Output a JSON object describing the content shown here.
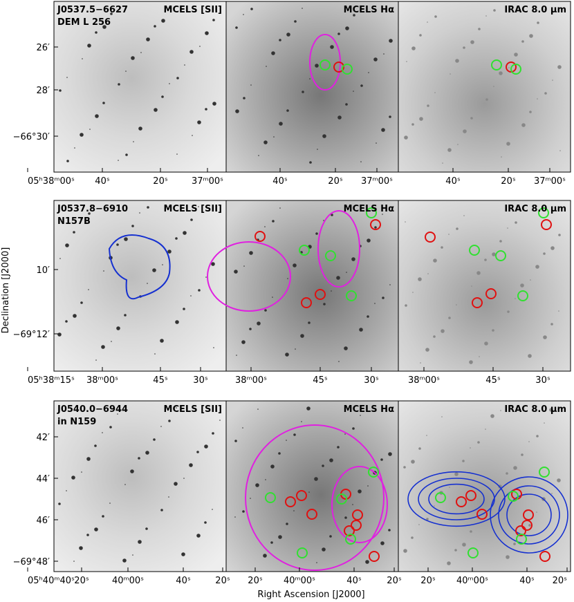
{
  "figure": {
    "x_axis_label": "Right Ascension [J2000]",
    "y_axis_label": "Declination [J2000]",
    "rows": [
      {
        "panels": [
          {
            "field": "J0537.5−6627",
            "object": "DEM L 256",
            "band": "MCELS [SII]",
            "x_ticks": [
              "05ʰ38ᵐ00ˢ",
              "40ˢ",
              "20ˢ",
              "37ᵐ00ˢ"
            ]
          },
          {
            "band": "MCELS Hα",
            "x_ticks": [
              "40ˢ",
              "20ˢ",
              "37ᵐ00ˢ"
            ]
          },
          {
            "band": "IRAC 8.0 μm",
            "x_ticks": [
              "40ˢ",
              "20ˢ",
              "37ᵐ00ˢ"
            ]
          }
        ],
        "y_ticks": [
          "26′",
          "28′",
          "−66°30′"
        ]
      },
      {
        "panels": [
          {
            "field": "J0537.8−6910",
            "object": "N157B",
            "band": "MCELS [SII]",
            "x_ticks": [
              "05ʰ38ᵐ15ˢ",
              "38ᵐ00ˢ",
              "45ˢ",
              "30ˢ"
            ]
          },
          {
            "band": "MCELS Hα",
            "x_ticks": [
              "38ᵐ00ˢ",
              "45ˢ",
              "30ˢ"
            ]
          },
          {
            "band": "IRAC 8.0 μm",
            "x_ticks": [
              "38ᵐ00ˢ",
              "45ˢ",
              "30ˢ"
            ]
          }
        ],
        "y_ticks": [
          "10′",
          "−69°12′"
        ]
      },
      {
        "panels": [
          {
            "field": "J0540.0−6944",
            "object": "in N159",
            "band": "MCELS [SII]",
            "x_ticks": [
              "05ʰ40ᵐ40ˢ",
              "20ˢ",
              "40ᵐ00ˢ",
              "40ˢ",
              "20ˢ"
            ]
          },
          {
            "band": "MCELS Hα",
            "x_ticks": [
              "20ˢ",
              "40ᵐ00ˢ",
              "40ˢ",
              "20ˢ"
            ]
          },
          {
            "band": "IRAC 8.0 μm",
            "x_ticks": [
              "20ˢ",
              "40ᵐ00ˢ",
              "40ˢ",
              "20ˢ"
            ]
          }
        ],
        "y_ticks": [
          "42′",
          "44′",
          "46′",
          "−69°48′"
        ]
      }
    ]
  }
}
